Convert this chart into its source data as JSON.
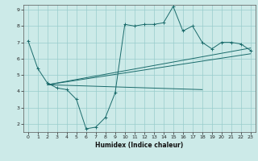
{
  "xlabel": "Humidex (Indice chaleur)",
  "bg_color": "#cceae8",
  "grid_color": "#99cccc",
  "line_color": "#1a6b6b",
  "xlim": [
    -0.5,
    23.5
  ],
  "ylim": [
    1.5,
    9.3
  ],
  "xticks": [
    0,
    1,
    2,
    3,
    4,
    5,
    6,
    7,
    8,
    9,
    10,
    11,
    12,
    13,
    14,
    15,
    16,
    17,
    18,
    19,
    20,
    21,
    22,
    23
  ],
  "yticks": [
    2,
    3,
    4,
    5,
    6,
    7,
    8,
    9
  ],
  "series1_x": [
    0,
    1,
    2,
    3,
    4,
    5,
    6,
    7,
    8,
    9,
    10,
    11,
    12,
    13,
    14,
    15,
    16,
    17,
    18,
    19,
    20,
    21,
    22,
    23
  ],
  "series1_y": [
    7.1,
    5.4,
    4.5,
    4.2,
    4.1,
    3.5,
    1.7,
    1.8,
    2.4,
    3.9,
    8.1,
    8.0,
    8.1,
    8.1,
    8.2,
    9.2,
    7.7,
    8.0,
    7.0,
    6.6,
    7.0,
    7.0,
    6.9,
    6.5
  ],
  "series2_x": [
    2,
    23
  ],
  "series2_y": [
    4.4,
    6.3
  ],
  "series3_x": [
    2,
    23
  ],
  "series3_y": [
    4.4,
    6.65
  ],
  "series4_x": [
    2,
    18
  ],
  "series4_y": [
    4.4,
    4.1
  ]
}
